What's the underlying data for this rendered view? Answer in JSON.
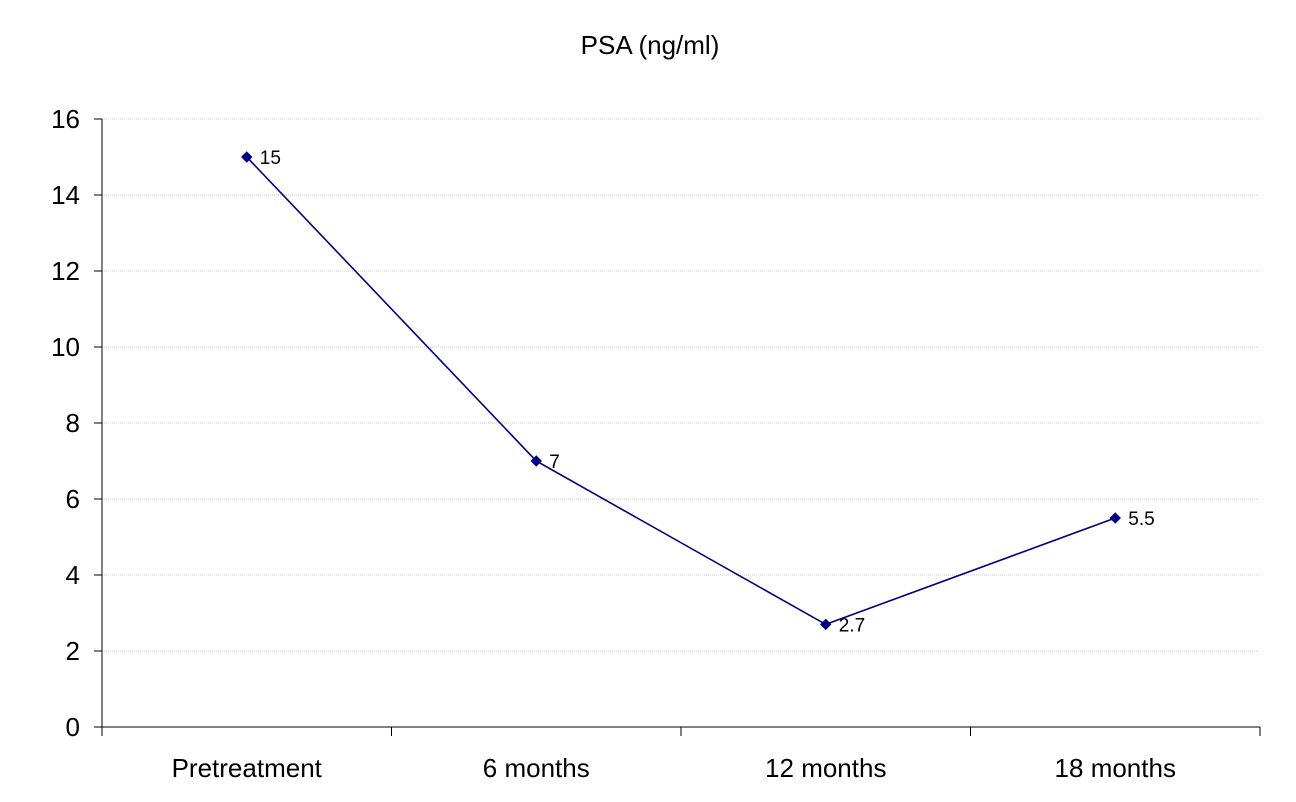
{
  "chart_data": {
    "type": "line",
    "title": "PSA (ng/ml)",
    "xlabel": "",
    "ylabel": "",
    "categories": [
      "Pretreatment",
      "6 months",
      "12 months",
      "18 months"
    ],
    "series": [
      {
        "values": [
          15,
          7,
          2.7,
          5.5
        ],
        "data_labels": [
          "15",
          "7",
          "2.7",
          "5.5"
        ],
        "color": "#000080",
        "marker": "diamond"
      }
    ],
    "ylim": [
      0,
      16
    ],
    "y_ticks": [
      "0",
      "2",
      "4",
      "6",
      "8",
      "10",
      "12",
      "14",
      "16"
    ],
    "y_tick_values": [
      0,
      2,
      4,
      6,
      8,
      10,
      12,
      14,
      16
    ],
    "grid": true,
    "grid_color": "#c8c8c8",
    "legend": "none"
  }
}
